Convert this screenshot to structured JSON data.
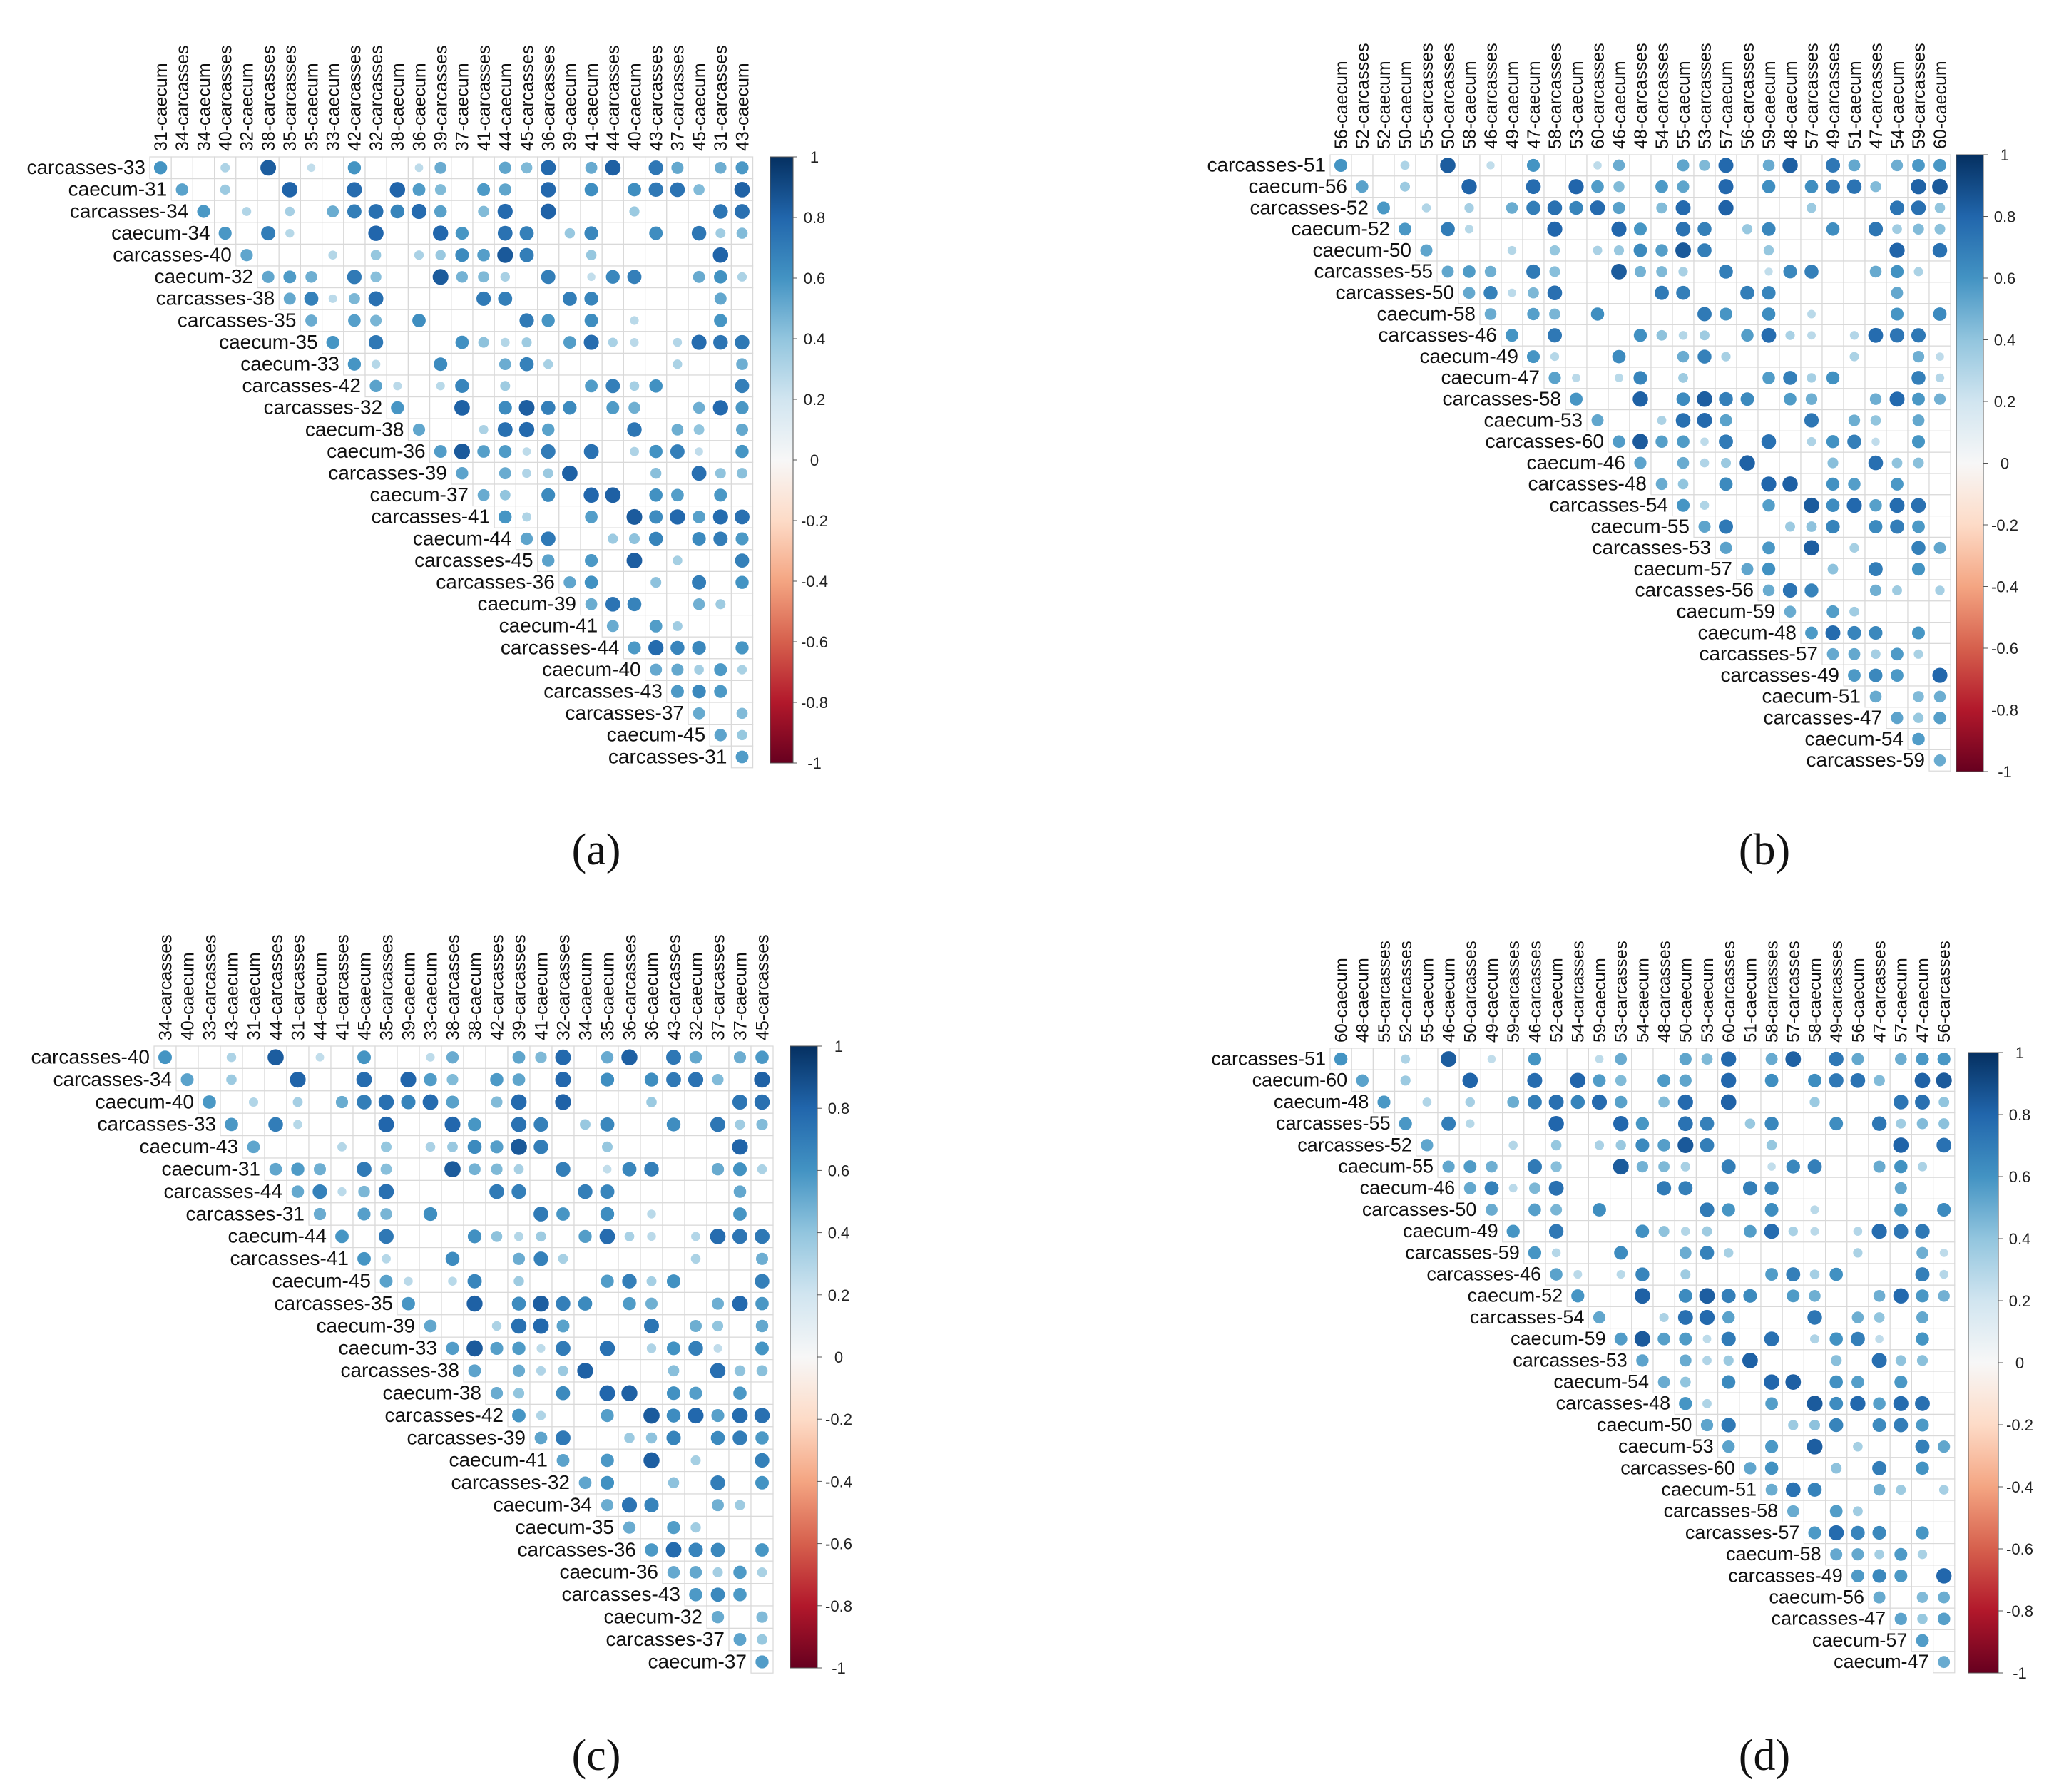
{
  "figure": {
    "panel_labels": [
      "(a)",
      "(b)",
      "(c)",
      "(d)"
    ]
  },
  "chart_data": [
    {
      "type": "heatmap",
      "panel": "(a)",
      "style": "upper-triangle correlation matrix with circle glyphs",
      "rows": [
        "carcasses-33",
        "caecum-31",
        "carcasses-34",
        "caecum-34",
        "carcasses-40",
        "caecum-32",
        "carcasses-38",
        "carcasses-35",
        "caecum-35",
        "caecum-33",
        "carcasses-42",
        "carcasses-32",
        "caecum-38",
        "caecum-36",
        "carcasses-39",
        "caecum-37",
        "carcasses-41",
        "caecum-44",
        "carcasses-45",
        "carcasses-36",
        "caecum-39",
        "caecum-41",
        "carcasses-44",
        "caecum-40",
        "carcasses-43",
        "carcasses-37",
        "caecum-45",
        "carcasses-31"
      ],
      "columns": [
        "31-caecum",
        "34-carcasses",
        "34-caecum",
        "40-carcasses",
        "32-caecum",
        "38-carcasses",
        "35-carcasses",
        "35-caecum",
        "33-caecum",
        "42-carcasses",
        "32-carcasses",
        "38-caecum",
        "36-caecum",
        "39-carcasses",
        "37-caecum",
        "41-carcasses",
        "44-caecum",
        "45-carcasses",
        "36-carcasses",
        "39-caecum",
        "41-caecum",
        "44-carcasses",
        "40-caecum",
        "43-carcasses",
        "37-carcasses",
        "45-caecum",
        "31-carcasses",
        "43-caecum"
      ],
      "value_range": [
        -1,
        1
      ],
      "legend_ticks": [
        "1",
        "0.8",
        "0.6",
        "0.4",
        "0.2",
        "0",
        "-0.2",
        "-0.4",
        "-0.6",
        "-0.8",
        "-1"
      ],
      "palette": {
        "negative": "#67001f",
        "mid": "#f7f7f7",
        "positive": "#053061"
      }
    },
    {
      "type": "heatmap",
      "panel": "(b)",
      "style": "upper-triangle correlation matrix with circle glyphs",
      "rows": [
        "carcasses-51",
        "caecum-56",
        "carcasses-52",
        "caecum-52",
        "caecum-50",
        "carcasses-55",
        "carcasses-50",
        "caecum-58",
        "carcasses-46",
        "caecum-49",
        "caecum-47",
        "carcasses-58",
        "caecum-53",
        "carcasses-60",
        "caecum-46",
        "carcasses-48",
        "carcasses-54",
        "caecum-55",
        "carcasses-53",
        "caecum-57",
        "carcasses-56",
        "caecum-59",
        "caecum-48",
        "carcasses-57",
        "carcasses-49",
        "caecum-51",
        "carcasses-47",
        "caecum-54",
        "carcasses-59"
      ],
      "columns": [
        "56-caecum",
        "52-carcasses",
        "52-caecum",
        "50-caecum",
        "55-carcasses",
        "50-carcasses",
        "58-caecum",
        "46-carcasses",
        "49-caecum",
        "47-caecum",
        "58-carcasses",
        "53-caecum",
        "60-carcasses",
        "46-caecum",
        "48-carcasses",
        "54-carcasses",
        "55-caecum",
        "53-carcasses",
        "57-caecum",
        "56-carcasses",
        "59-caecum",
        "48-caecum",
        "57-carcasses",
        "49-carcasses",
        "51-caecum",
        "47-carcasses",
        "54-caecum",
        "59-carcasses",
        "60-caecum"
      ],
      "value_range": [
        -1,
        1
      ],
      "legend_ticks": [
        "1",
        "0.8",
        "0.6",
        "0.4",
        "0.2",
        "0",
        "-0.2",
        "-0.4",
        "-0.6",
        "-0.8",
        "-1"
      ],
      "palette": {
        "negative": "#67001f",
        "mid": "#f7f7f7",
        "positive": "#053061"
      }
    },
    {
      "type": "heatmap",
      "panel": "(c)",
      "style": "upper-triangle correlation matrix with circle glyphs",
      "rows": [
        "carcasses-40",
        "carcasses-34",
        "caecum-40",
        "carcasses-33",
        "caecum-43",
        "caecum-31",
        "carcasses-44",
        "carcasses-31",
        "caecum-44",
        "carcasses-41",
        "caecum-45",
        "carcasses-35",
        "caecum-39",
        "caecum-33",
        "carcasses-38",
        "caecum-38",
        "carcasses-42",
        "carcasses-39",
        "caecum-41",
        "carcasses-32",
        "caecum-34",
        "caecum-35",
        "carcasses-36",
        "caecum-36",
        "carcasses-43",
        "caecum-32",
        "carcasses-37",
        "caecum-37"
      ],
      "columns": [
        "34-carcasses",
        "40-caecum",
        "33-carcasses",
        "43-caecum",
        "31-caecum",
        "44-carcasses",
        "31-carcasses",
        "44-caecum",
        "41-carcasses",
        "45-caecum",
        "35-carcasses",
        "39-caecum",
        "33-caecum",
        "38-carcasses",
        "38-caecum",
        "42-carcasses",
        "39-carcasses",
        "41-caecum",
        "32-carcasses",
        "34-caecum",
        "35-caecum",
        "36-carcasses",
        "36-caecum",
        "43-carcasses",
        "32-caecum",
        "37-carcasses",
        "37-caecum",
        "45-carcasses"
      ],
      "value_range": [
        -1,
        1
      ],
      "legend_ticks": [
        "1",
        "0.8",
        "0.6",
        "0.4",
        "0.2",
        "0",
        "-0.2",
        "-0.4",
        "-0.6",
        "-0.8",
        "-1"
      ],
      "palette": {
        "negative": "#67001f",
        "mid": "#f7f7f7",
        "positive": "#053061"
      }
    },
    {
      "type": "heatmap",
      "panel": "(d)",
      "style": "upper-triangle correlation matrix with circle glyphs",
      "rows": [
        "carcasses-51",
        "caecum-60",
        "caecum-48",
        "carcasses-55",
        "carcasses-52",
        "caecum-55",
        "caecum-46",
        "carcasses-50",
        "caecum-49",
        "carcasses-59",
        "carcasses-46",
        "caecum-52",
        "carcasses-54",
        "caecum-59",
        "carcasses-53",
        "caecum-54",
        "carcasses-48",
        "caecum-50",
        "caecum-53",
        "carcasses-60",
        "caecum-51",
        "carcasses-58",
        "carcasses-57",
        "caecum-58",
        "carcasses-49",
        "caecum-56",
        "carcasses-47",
        "caecum-57",
        "caecum-47"
      ],
      "columns": [
        "60-caecum",
        "48-caecum",
        "55-carcasses",
        "52-carcasses",
        "55-caecum",
        "46-caecum",
        "50-carcasses",
        "49-caecum",
        "59-carcasses",
        "46-carcasses",
        "52-caecum",
        "54-carcasses",
        "59-caecum",
        "53-carcasses",
        "54-caecum",
        "48-carcasses",
        "50-caecum",
        "53-caecum",
        "60-carcasses",
        "51-caecum",
        "58-carcasses",
        "57-carcasses",
        "58-caecum",
        "49-carcasses",
        "56-caecum",
        "47-carcasses",
        "57-caecum",
        "47-caecum",
        "56-carcasses"
      ],
      "value_range": [
        -1,
        1
      ],
      "legend_ticks": [
        "1",
        "0.8",
        "0.6",
        "0.4",
        "0.2",
        "0",
        "-0.2",
        "-0.4",
        "-0.6",
        "-0.8",
        "-1"
      ],
      "palette": {
        "negative": "#67001f",
        "mid": "#f7f7f7",
        "positive": "#053061"
      }
    }
  ]
}
